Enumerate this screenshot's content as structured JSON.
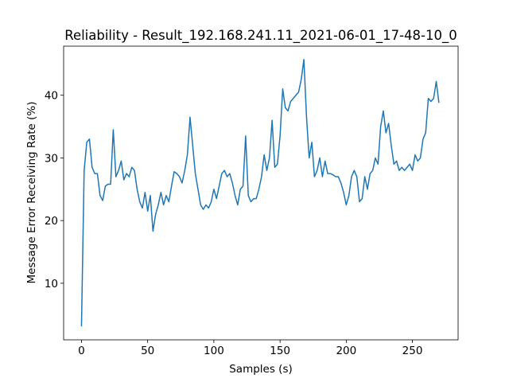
{
  "chart_data": {
    "type": "line",
    "title": "Reliability - Result_192.168.241.11_2021-06-01_17-48-10_0",
    "xlabel": "Samples (s)",
    "ylabel": "Message Error Receiving Rate (%)",
    "x": [
      0,
      2,
      4,
      6,
      8,
      10,
      12,
      14,
      16,
      18,
      20,
      22,
      24,
      26,
      28,
      30,
      32,
      34,
      36,
      38,
      40,
      42,
      44,
      46,
      48,
      50,
      52,
      54,
      56,
      58,
      60,
      62,
      64,
      66,
      68,
      70,
      72,
      74,
      76,
      78,
      80,
      82,
      84,
      86,
      88,
      90,
      92,
      94,
      96,
      98,
      100,
      102,
      104,
      106,
      108,
      110,
      112,
      114,
      116,
      118,
      120,
      122,
      124,
      126,
      128,
      130,
      132,
      134,
      136,
      138,
      140,
      142,
      144,
      146,
      148,
      150,
      152,
      154,
      156,
      158,
      160,
      162,
      164,
      166,
      168,
      170,
      172,
      174,
      176,
      178,
      180,
      182,
      184,
      186,
      188,
      190,
      192,
      194,
      196,
      198,
      200,
      202,
      204,
      206,
      208,
      210,
      212,
      214,
      216,
      218,
      220,
      222,
      224,
      226,
      228,
      230,
      232,
      234,
      236,
      238,
      240,
      242,
      244,
      246,
      248,
      250,
      252,
      254,
      256,
      258,
      260,
      262,
      264,
      266,
      268,
      270
    ],
    "series": [
      {
        "name": "Message Error Receiving Rate",
        "color": "#1f77b4",
        "values": [
          3.1,
          28,
          32.5,
          33,
          28.5,
          27.5,
          27.5,
          24,
          23.2,
          25.5,
          25.8,
          25.8,
          34.5,
          27,
          28,
          29.5,
          26.5,
          27.5,
          27,
          28.5,
          28,
          25,
          23,
          22,
          24.5,
          21.5,
          24,
          18.3,
          21,
          22.5,
          24.5,
          22.5,
          24,
          23,
          25.5,
          27.8,
          27.5,
          27,
          26,
          28,
          30.5,
          36.5,
          32,
          27.5,
          25,
          22.5,
          21.8,
          22.5,
          22,
          23,
          25,
          23.5,
          25.5,
          27.5,
          28,
          27,
          27.5,
          26,
          24,
          22.5,
          25,
          25.5,
          33.5,
          24,
          23,
          23.5,
          23.5,
          25,
          27,
          30.5,
          28,
          30,
          36,
          28.5,
          29,
          33.5,
          41,
          38,
          37.5,
          39,
          39.5,
          40,
          40.5,
          42.5,
          45.7,
          36.5,
          30,
          32.5,
          27,
          28,
          30,
          27,
          29.5,
          27.5,
          27.5,
          27.3,
          27,
          27,
          26,
          24.5,
          22.5,
          24,
          27,
          28,
          27,
          23,
          23.5,
          27,
          25,
          27.5,
          28,
          30,
          29,
          35,
          37.5,
          34,
          35.5,
          32,
          29,
          29.5,
          28,
          28.5,
          28,
          28.5,
          29,
          28,
          30.5,
          29.5,
          30,
          33,
          34,
          39.5,
          39,
          39.5,
          42.2,
          38.8
        ]
      }
    ],
    "xlim": [
      -13.5,
      284.5
    ],
    "ylim": [
      0.97,
      47.83
    ],
    "xticks": [
      0,
      50,
      100,
      150,
      200,
      250
    ],
    "yticks": [
      10,
      20,
      30,
      40
    ],
    "grid": false
  }
}
